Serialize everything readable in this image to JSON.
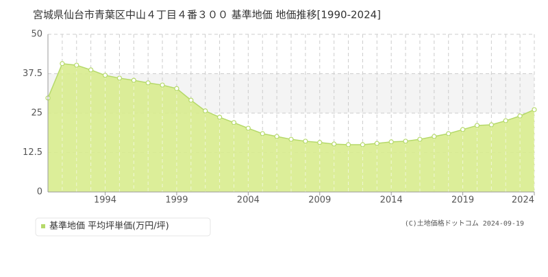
{
  "chart_data": {
    "type": "area",
    "title": "宮城県仙台市青葉区中山４丁目４番３００ 基準地価 地価推移[1990-2024]",
    "x": [
      1990,
      1991,
      1992,
      1993,
      1994,
      1995,
      1996,
      1997,
      1998,
      1999,
      2000,
      2001,
      2002,
      2003,
      2004,
      2005,
      2006,
      2007,
      2008,
      2009,
      2010,
      2011,
      2012,
      2013,
      2014,
      2015,
      2016,
      2017,
      2018,
      2019,
      2020,
      2021,
      2022,
      2023,
      2024
    ],
    "series": [
      {
        "name": "基準地価 平均坪単価(万円/坪)",
        "color": "#b5d96a",
        "values": [
          29.8,
          40.7,
          40.2,
          38.7,
          37.0,
          36.1,
          35.4,
          34.6,
          33.9,
          32.8,
          29.1,
          25.7,
          23.7,
          22.0,
          20.2,
          18.5,
          17.6,
          16.7,
          16.1,
          15.7,
          15.2,
          15.0,
          15.0,
          15.4,
          15.9,
          16.1,
          16.7,
          17.6,
          18.5,
          19.8,
          21.1,
          21.3,
          22.6,
          24.1,
          26.1
        ]
      }
    ],
    "xlim": [
      1990,
      2024
    ],
    "xticks": [
      1994,
      1999,
      2004,
      2009,
      2014,
      2019,
      2024
    ],
    "ylim": [
      0,
      50
    ],
    "yticks": [
      0,
      12.5,
      25,
      37.5,
      50
    ],
    "grid": true,
    "annotation": "(C)土地価格ドットコム 2024-09-19"
  }
}
